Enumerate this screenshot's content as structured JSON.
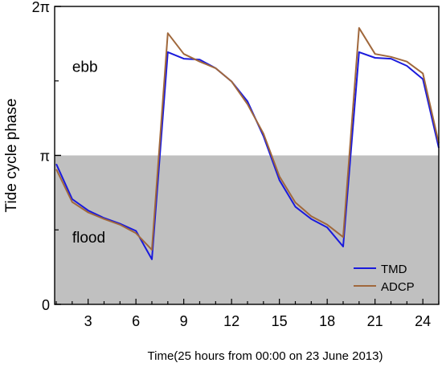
{
  "chart_data": {
    "type": "line",
    "title": "",
    "xlabel": "Time(25 hours from 00:00 on 23 June 2013)",
    "ylabel": "Tide cycle phase",
    "xlim": [
      0.9,
      25
    ],
    "ylim": [
      0,
      6.2832
    ],
    "x_ticks": [
      {
        "value": 3,
        "label": "3"
      },
      {
        "value": 6,
        "label": "6"
      },
      {
        "value": 9,
        "label": "9"
      },
      {
        "value": 12,
        "label": "12"
      },
      {
        "value": 15,
        "label": "15"
      },
      {
        "value": 18,
        "label": "18"
      },
      {
        "value": 21,
        "label": "21"
      },
      {
        "value": 24,
        "label": "24"
      }
    ],
    "y_ticks": [
      {
        "value": 0,
        "label": "0"
      },
      {
        "value": 3.1416,
        "label": "π"
      },
      {
        "value": 6.2832,
        "label": "2π"
      }
    ],
    "shaded_region": {
      "y0": 0,
      "y1": 3.1416,
      "color": "#c0c0c0"
    },
    "region_labels": [
      {
        "text": "ebb",
        "x": 2.0,
        "y": 4.9
      },
      {
        "text": "flood",
        "x": 2.0,
        "y": 1.3
      }
    ],
    "x": [
      1,
      2,
      3,
      4,
      5,
      6,
      7,
      8,
      9,
      10,
      11,
      12,
      13,
      14,
      15,
      16,
      17,
      18,
      19,
      20,
      21,
      22,
      23,
      24,
      25
    ],
    "series": [
      {
        "name": "TMD",
        "color": "#1a1adc",
        "values": [
          2.96,
          2.22,
          1.98,
          1.82,
          1.7,
          1.55,
          0.95,
          5.32,
          5.18,
          5.16,
          4.98,
          4.7,
          4.28,
          3.55,
          2.62,
          2.06,
          1.8,
          1.62,
          1.22,
          5.32,
          5.2,
          5.18,
          5.03,
          4.75,
          3.3
        ]
      },
      {
        "name": "ADCP",
        "color": "#a0683c",
        "values": [
          2.85,
          2.16,
          1.94,
          1.8,
          1.68,
          1.5,
          1.15,
          5.72,
          5.28,
          5.12,
          4.98,
          4.7,
          4.22,
          3.6,
          2.7,
          2.15,
          1.86,
          1.68,
          1.42,
          5.83,
          5.28,
          5.22,
          5.12,
          4.87,
          3.4
        ]
      }
    ],
    "legend": {
      "position": "bottom-right"
    },
    "grid": false
  }
}
